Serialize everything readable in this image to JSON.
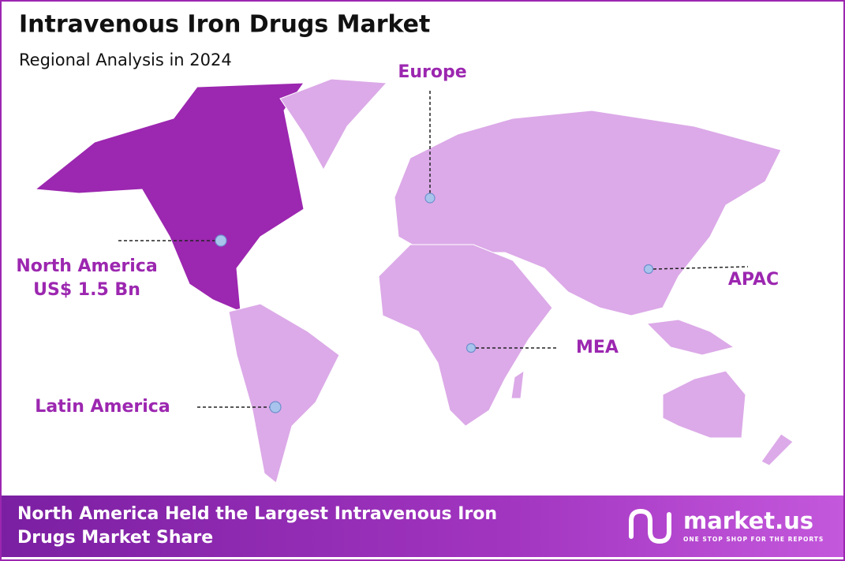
{
  "header": {
    "title": "Intravenous Iron Drugs Market",
    "subtitle": "Regional Analysis in 2024"
  },
  "regions": [
    {
      "label": "Europe"
    },
    {
      "label": "North America",
      "value": "US$ 1.5 Bn"
    },
    {
      "label": "APAC"
    },
    {
      "label": "MEA"
    },
    {
      "label": "Latin America"
    }
  ],
  "footer": {
    "lines": [
      "North America Held the Largest Intravenous Iron",
      "Drugs Market Share"
    ]
  },
  "logo": {
    "name": "market.us",
    "tagline": "ONE STOP SHOP FOR THE REPORTS"
  }
}
